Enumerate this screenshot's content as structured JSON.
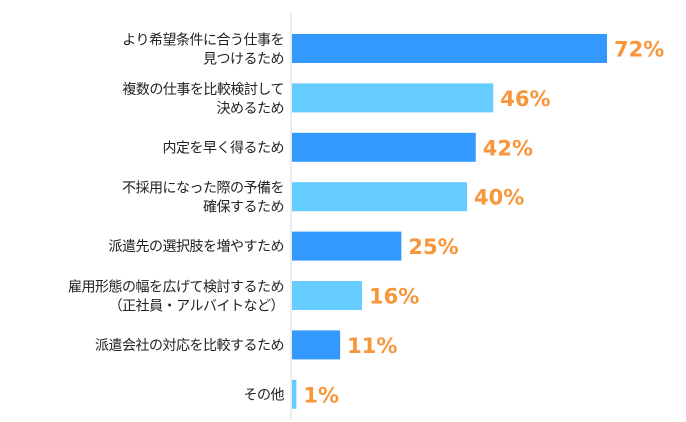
{
  "chart_data": {
    "type": "bar",
    "orientation": "horizontal",
    "categories": [
      [
        "より希望条件に合う仕事を",
        "見つけるため"
      ],
      [
        "複数の仕事を比較検討して",
        "決めるため"
      ],
      [
        "内定を早く得るため"
      ],
      [
        "不採用になった際の予備を",
        "確保するため"
      ],
      [
        "派遣先の選択肢を増やすため"
      ],
      [
        "雇用形態の幅を広げて検討するため",
        "（正社員・アルバイトなど）"
      ],
      [
        "派遣会社の対応を比較するため"
      ],
      [
        "その他"
      ]
    ],
    "values": [
      72,
      46,
      42,
      40,
      25,
      16,
      11,
      1
    ],
    "value_labels": [
      "72%",
      "46%",
      "42%",
      "40%",
      "25%",
      "16%",
      "11%",
      "1%"
    ],
    "xlim": [
      0,
      80
    ],
    "grid": false,
    "colors": {
      "bar_alternating": [
        "#3399FF",
        "#66CCFF"
      ],
      "value_label": "#F7963A",
      "axis": "#D9D9D9"
    }
  }
}
